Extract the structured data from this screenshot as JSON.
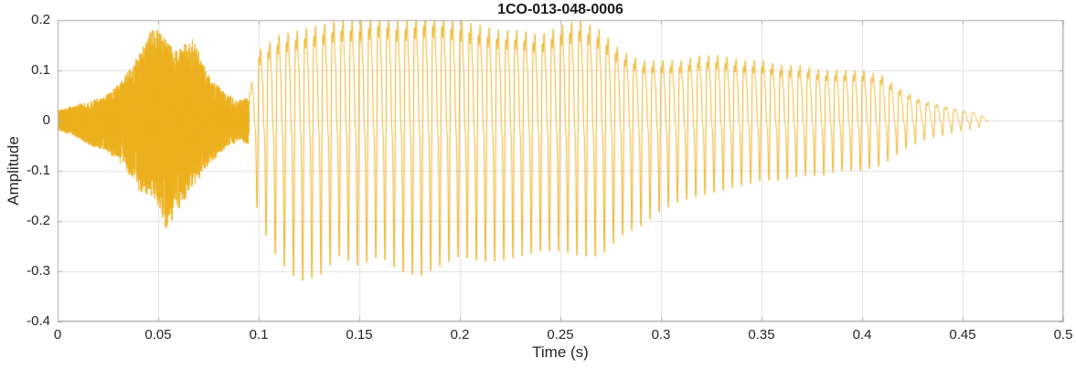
{
  "chart_data": {
    "type": "line",
    "title": "1CO-013-048-0006",
    "xlabel": "Time (s)",
    "ylabel": "Amplitude",
    "xlim": [
      0,
      0.5
    ],
    "ylim": [
      -0.4,
      0.2
    ],
    "grid": true,
    "legend": false,
    "colors": {
      "line": "#EDB120",
      "grid": "#E0E0E0",
      "axis": "#ABABAB",
      "text": "#262626",
      "title": "#1A1A1A",
      "background": "#FFFFFF"
    },
    "xticks": {
      "values": [
        0,
        0.05,
        0.1,
        0.15,
        0.2,
        0.25,
        0.3,
        0.35,
        0.4,
        0.45,
        0.5
      ],
      "labels": [
        "0",
        "0.05",
        "0.1",
        "0.15",
        "0.2",
        "0.25",
        "0.3",
        "0.35",
        "0.4",
        "0.45",
        "0.5"
      ]
    },
    "yticks": {
      "values": [
        0.2,
        0.1,
        0,
        -0.1,
        -0.2,
        -0.3,
        -0.4
      ],
      "labels": [
        "0.2",
        "0.1",
        "0",
        "-0.1",
        "-0.2",
        "-0.3",
        "-0.4"
      ]
    },
    "waveform": {
      "description": "Speech-like audio waveform: low-level unvoiced noise burst from 0 to 0.095 s (peaks about +0.19 / -0.22 near 0.05 s), then a voiced segment from 0.095 to 0.463 s with positive peaks near +0.2 and strong negative-going pulses down to about -0.32 near 0.12 s, envelope slowly decaying to zero by about 0.463 s; silent afterwards to 0.5 s.",
      "segments": [
        {
          "type": "unvoiced-noise",
          "t_start": 0.0,
          "t_end": 0.095
        },
        {
          "type": "voiced",
          "t_start": 0.095,
          "t_end": 0.463,
          "f0_hz": 220
        }
      ],
      "envelope": {
        "t": [
          0.0,
          0.008,
          0.016,
          0.024,
          0.032,
          0.04,
          0.048,
          0.054,
          0.06,
          0.068,
          0.075,
          0.082,
          0.09,
          0.095,
          0.1,
          0.11,
          0.12,
          0.13,
          0.14,
          0.15,
          0.16,
          0.17,
          0.18,
          0.19,
          0.2,
          0.21,
          0.22,
          0.23,
          0.24,
          0.25,
          0.26,
          0.27,
          0.28,
          0.29,
          0.3,
          0.31,
          0.32,
          0.33,
          0.34,
          0.35,
          0.36,
          0.37,
          0.38,
          0.39,
          0.4,
          0.41,
          0.42,
          0.43,
          0.44,
          0.45,
          0.458,
          0.463
        ],
        "upper": [
          0.02,
          0.03,
          0.04,
          0.05,
          0.08,
          0.13,
          0.19,
          0.16,
          0.14,
          0.17,
          0.09,
          0.06,
          0.04,
          0.05,
          0.14,
          0.17,
          0.18,
          0.19,
          0.2,
          0.2,
          0.21,
          0.2,
          0.21,
          0.21,
          0.2,
          0.19,
          0.18,
          0.18,
          0.17,
          0.19,
          0.2,
          0.18,
          0.14,
          0.12,
          0.12,
          0.12,
          0.13,
          0.13,
          0.12,
          0.12,
          0.11,
          0.11,
          0.1,
          0.1,
          0.1,
          0.09,
          0.06,
          0.04,
          0.03,
          0.02,
          0.015,
          0.0
        ],
        "lower": [
          -0.02,
          -0.03,
          -0.05,
          -0.06,
          -0.09,
          -0.14,
          -0.16,
          -0.22,
          -0.18,
          -0.13,
          -0.09,
          -0.06,
          -0.04,
          -0.05,
          -0.2,
          -0.28,
          -0.32,
          -0.31,
          -0.27,
          -0.29,
          -0.27,
          -0.3,
          -0.31,
          -0.29,
          -0.27,
          -0.28,
          -0.28,
          -0.27,
          -0.26,
          -0.26,
          -0.27,
          -0.27,
          -0.23,
          -0.21,
          -0.18,
          -0.16,
          -0.15,
          -0.14,
          -0.13,
          -0.12,
          -0.12,
          -0.11,
          -0.11,
          -0.1,
          -0.1,
          -0.09,
          -0.06,
          -0.04,
          -0.03,
          -0.02,
          -0.015,
          0.0
        ]
      }
    }
  }
}
